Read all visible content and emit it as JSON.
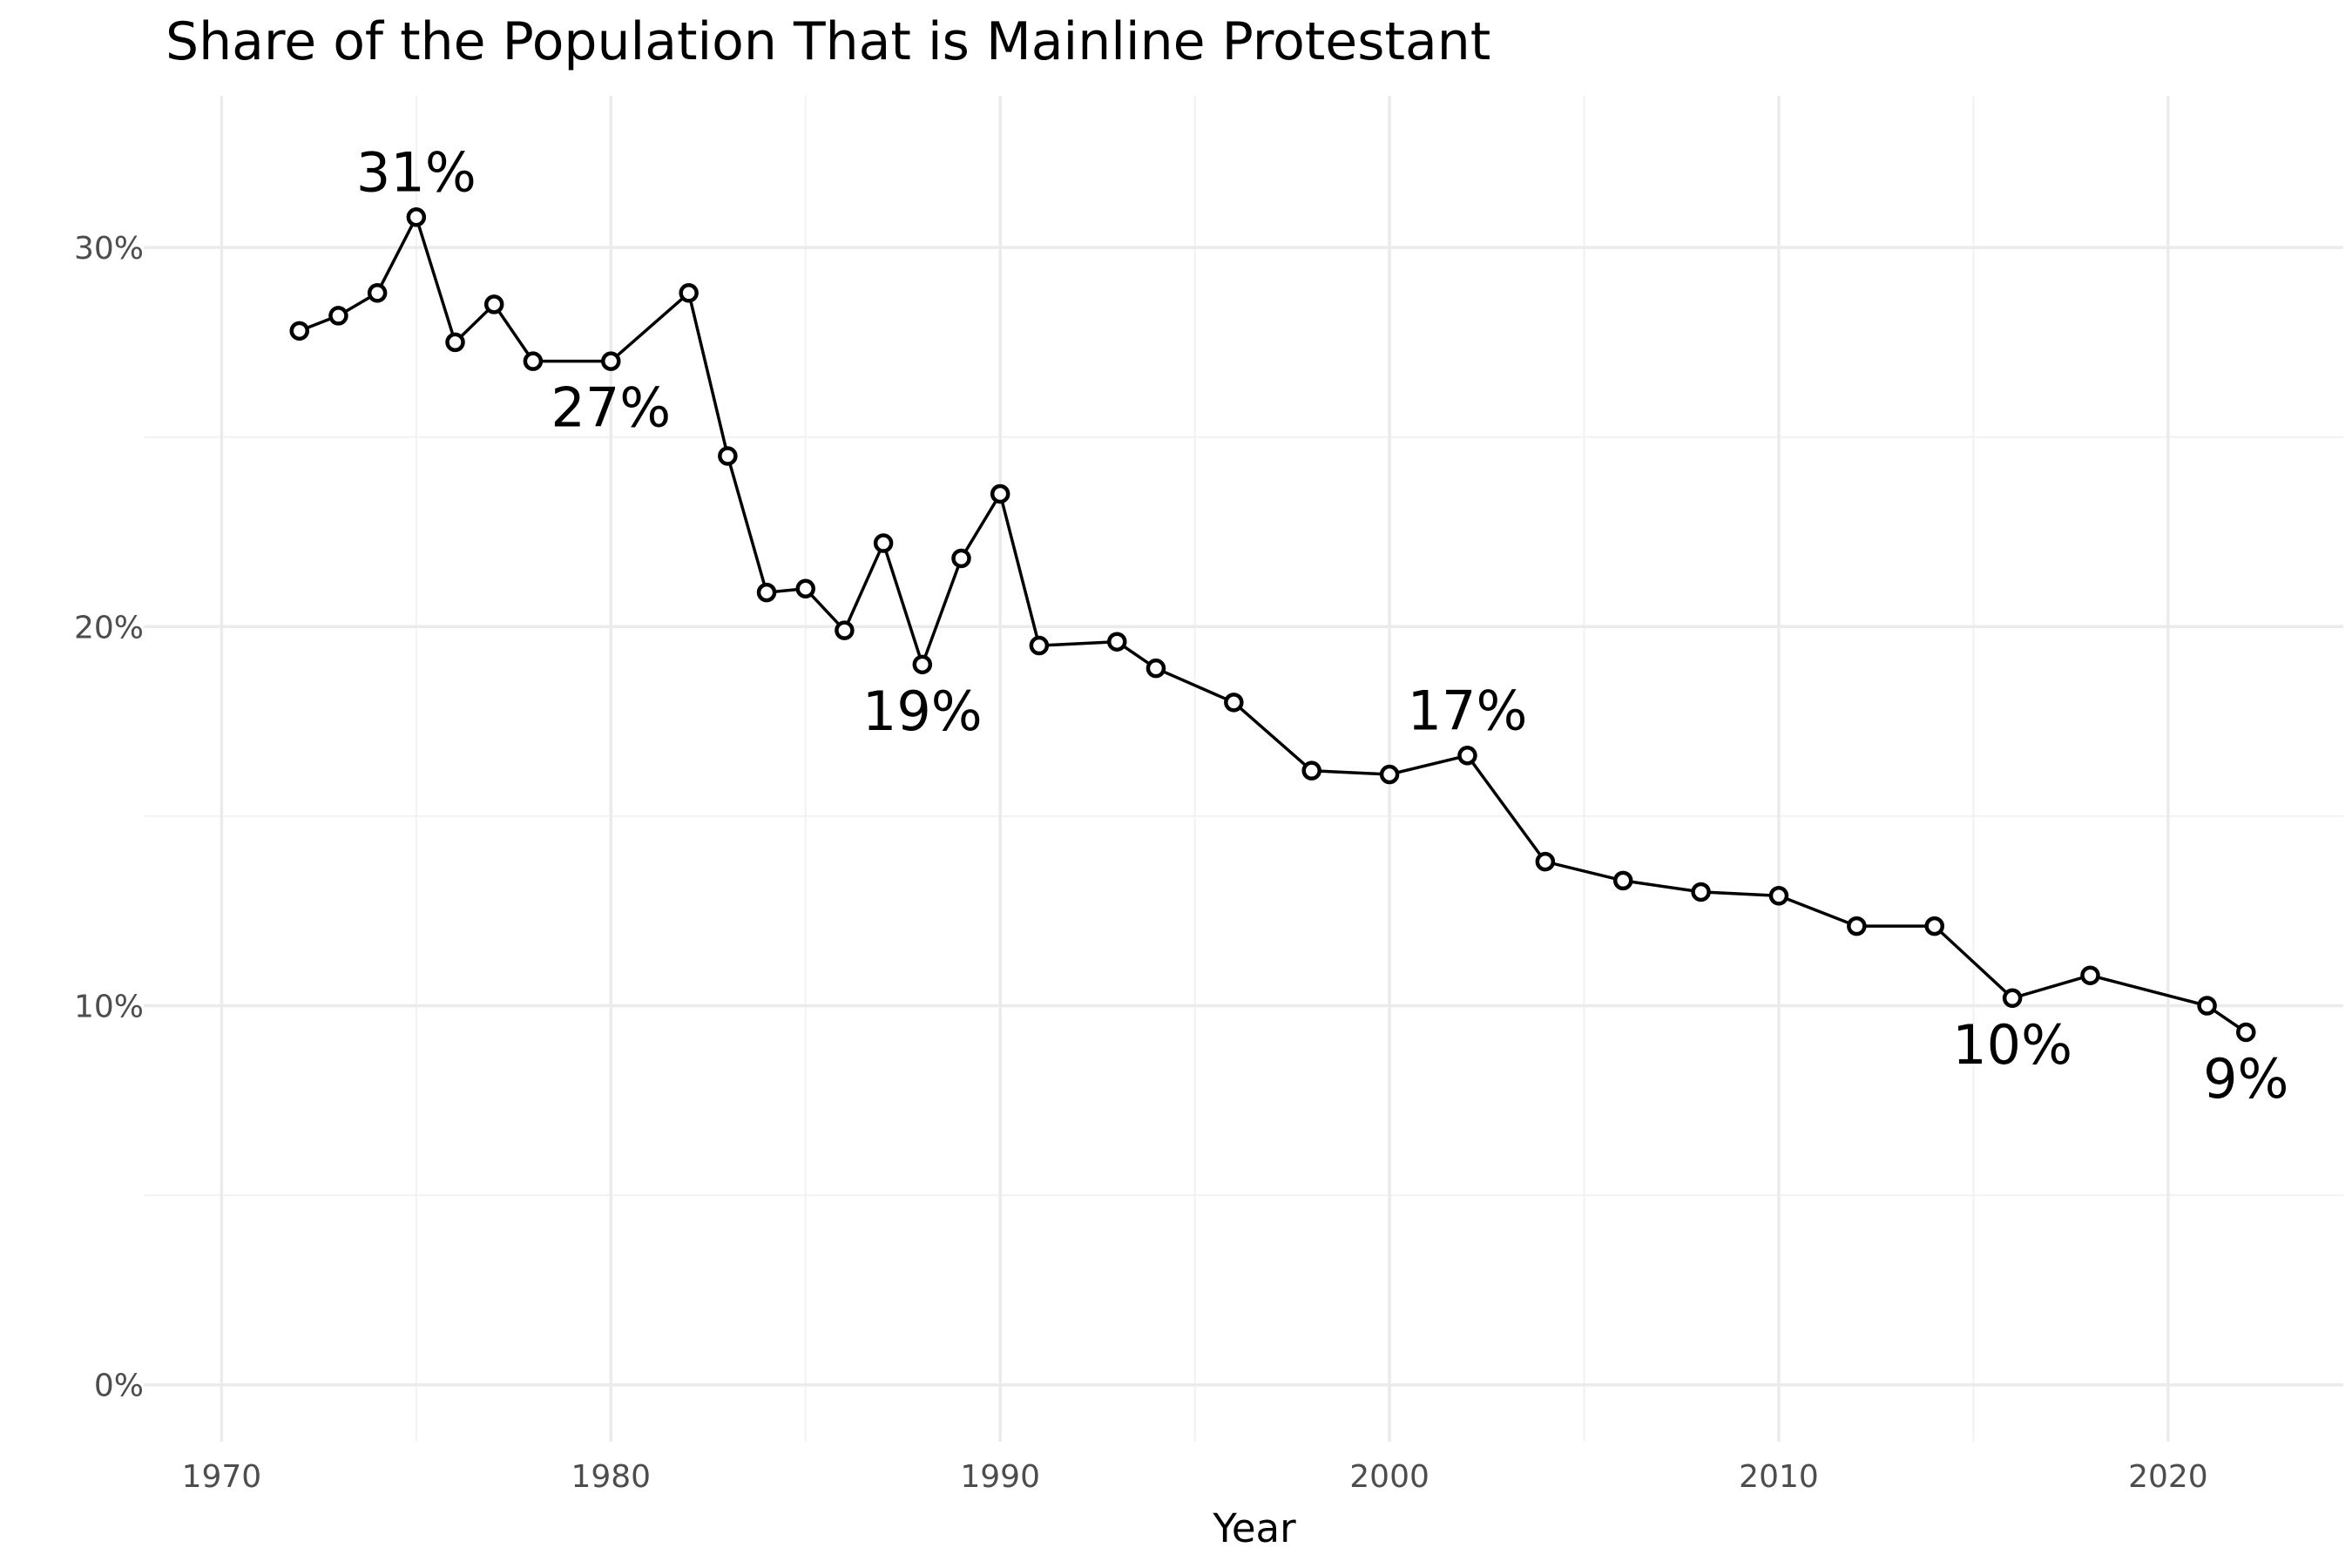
{
  "chart_data": {
    "type": "line",
    "title": "Share of the Population That is Mainline Protestant",
    "xlabel": "Year",
    "ylabel": "",
    "xlim": [
      1968,
      2024.5
    ],
    "ylim": [
      -0.015,
      0.34
    ],
    "x_ticks": [
      1970,
      1980,
      1990,
      2000,
      2010,
      2020
    ],
    "x_tick_labels": [
      "1970",
      "1980",
      "1990",
      "2000",
      "2010",
      "2020"
    ],
    "x_minor_ticks": [
      1975,
      1985,
      1995,
      2005,
      2015
    ],
    "y_ticks": [
      0,
      0.1,
      0.2,
      0.3
    ],
    "y_tick_labels": [
      "0%",
      "10%",
      "20%",
      "30%"
    ],
    "y_minor_ticks": [
      0.05,
      0.15,
      0.25
    ],
    "grid": true,
    "legend": "none",
    "colors": {
      "line": "#000000",
      "marker_fill": "#ffffff",
      "grid": "#ebebeb"
    },
    "x": [
      1972,
      1973,
      1974,
      1975,
      1976,
      1977,
      1978,
      1980,
      1982,
      1983,
      1984,
      1985,
      1986,
      1987,
      1988,
      1989,
      1990,
      1991,
      1993,
      1994,
      1996,
      1998,
      2000,
      2002,
      2004,
      2006,
      2008,
      2010,
      2012,
      2014,
      2016,
      2018,
      2021,
      2022
    ],
    "y": [
      0.278,
      0.282,
      0.288,
      0.308,
      0.275,
      0.285,
      0.27,
      0.27,
      0.288,
      0.245,
      0.209,
      0.21,
      0.199,
      0.222,
      0.19,
      0.218,
      0.235,
      0.195,
      0.196,
      0.189,
      0.18,
      0.162,
      0.161,
      0.166,
      0.138,
      0.133,
      0.13,
      0.129,
      0.121,
      0.121,
      0.102,
      0.108,
      0.1,
      0.093
    ],
    "annotations": [
      {
        "x": 1975,
        "y": 0.308,
        "label": "31%",
        "position": "above"
      },
      {
        "x": 1980,
        "y": 0.27,
        "label": "27%",
        "position": "below"
      },
      {
        "x": 1988,
        "y": 0.19,
        "label": "19%",
        "position": "below"
      },
      {
        "x": 2002,
        "y": 0.166,
        "label": "17%",
        "position": "above"
      },
      {
        "x": 2016,
        "y": 0.102,
        "label": "10%",
        "position": "below"
      },
      {
        "x": 2022,
        "y": 0.093,
        "label": "9%",
        "position": "below"
      }
    ]
  }
}
